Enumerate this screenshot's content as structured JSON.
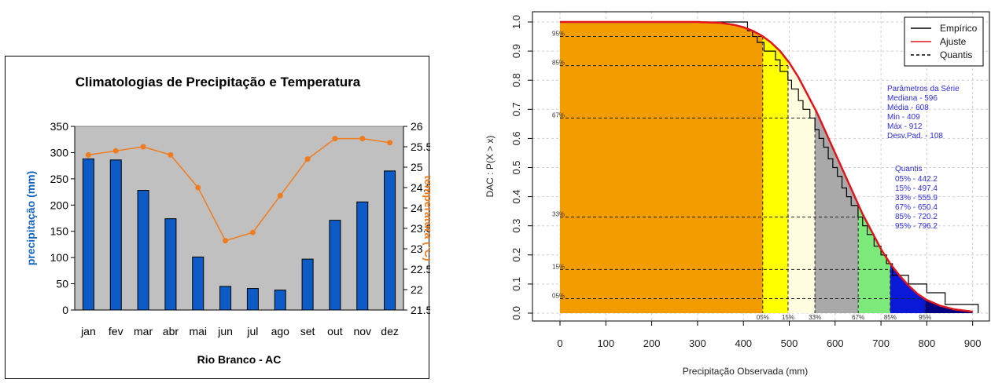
{
  "chart_data": [
    {
      "type": "bar",
      "title": "Climatologias de Precipitação e Temperatura",
      "xlabel": "Rio Branco - AC",
      "ylabel": "precipitação (mm)",
      "y2label": "temperatura (ºC)",
      "categories": [
        "jan",
        "fev",
        "mar",
        "abr",
        "mai",
        "jun",
        "jul",
        "ago",
        "set",
        "out",
        "nov",
        "dez"
      ],
      "ylim": [
        0,
        350
      ],
      "yticks": [
        "0",
        "50",
        "100",
        "150",
        "200",
        "250",
        "300",
        "350"
      ],
      "y2lim": [
        21.5,
        26
      ],
      "y2ticks": [
        "21.5",
        "22",
        "22.5",
        "23",
        "23.5",
        "24",
        "24.5",
        "25",
        "25.5",
        "26"
      ],
      "series": [
        {
          "name": "precipitação",
          "kind": "bar",
          "axis": "left",
          "color": "#0D5BC6",
          "values": [
            288,
            286,
            228,
            174,
            101,
            45,
            41,
            38,
            97,
            171,
            206,
            265
          ]
        },
        {
          "name": "temperatura",
          "kind": "line",
          "axis": "right",
          "color": "#F07C1E",
          "values": [
            25.3,
            25.4,
            25.5,
            25.3,
            24.5,
            23.2,
            23.4,
            24.3,
            25.2,
            25.7,
            25.7,
            25.6
          ]
        }
      ],
      "background": "#C0C0C0"
    },
    {
      "type": "area",
      "xlabel": "Precipitação Observada (mm)",
      "ylabel": "DAC : P(X > x)",
      "xlim": [
        0,
        900
      ],
      "xticks": [
        "0",
        "100",
        "200",
        "300",
        "400",
        "500",
        "600",
        "700",
        "800",
        "900"
      ],
      "ylim": [
        0,
        1
      ],
      "yticks": [
        "0.0",
        "0.1",
        "0.2",
        "0.3",
        "0.4",
        "0.5",
        "0.6",
        "0.7",
        "0.8",
        "0.9",
        "1.0"
      ],
      "grid": true,
      "legend_position": "top-right",
      "legend": [
        "Empírico",
        "Ajuste",
        "Quantis"
      ],
      "series": [
        {
          "name": "Empírico",
          "color": "#000000",
          "x": [
            360,
            409,
            420,
            430,
            445,
            470,
            480,
            497,
            505,
            520,
            530,
            545,
            556,
            565,
            575,
            585,
            595,
            605,
            615,
            625,
            635,
            650,
            660,
            670,
            685,
            700,
            712,
            725,
            760,
            800,
            840,
            912
          ],
          "y": [
            1.0,
            0.97,
            0.95,
            0.93,
            0.9,
            0.87,
            0.83,
            0.8,
            0.77,
            0.73,
            0.7,
            0.67,
            0.63,
            0.6,
            0.57,
            0.53,
            0.5,
            0.47,
            0.43,
            0.4,
            0.37,
            0.33,
            0.3,
            0.27,
            0.23,
            0.2,
            0.17,
            0.13,
            0.1,
            0.07,
            0.03,
            0.0
          ]
        },
        {
          "name": "Ajuste",
          "color": "#E0151B",
          "x": [
            0,
            300,
            350,
            380,
            400,
            420,
            440,
            460,
            480,
            500,
            520,
            540,
            560,
            580,
            600,
            620,
            640,
            660,
            680,
            700,
            720,
            740,
            760,
            780,
            800,
            830,
            860,
            900
          ],
          "y": [
            1.0,
            1.0,
            0.997,
            0.99,
            0.982,
            0.97,
            0.953,
            0.93,
            0.9,
            0.86,
            0.81,
            0.75,
            0.69,
            0.62,
            0.55,
            0.48,
            0.41,
            0.34,
            0.28,
            0.22,
            0.17,
            0.13,
            0.095,
            0.066,
            0.045,
            0.025,
            0.013,
            0.005
          ]
        }
      ],
      "quantile_bands": [
        {
          "from": 0,
          "to": 442.2,
          "color": "#F39C00"
        },
        {
          "from": 442.2,
          "to": 497.4,
          "color": "#FFFF00"
        },
        {
          "from": 497.4,
          "to": 555.9,
          "color": "#FFFDE0"
        },
        {
          "from": 555.9,
          "to": 650.4,
          "color": "#A9A9A9"
        },
        {
          "from": 650.4,
          "to": 720.2,
          "color": "#7BEA7B"
        },
        {
          "from": 720.2,
          "to": 796.2,
          "color": "#0A18D8"
        },
        {
          "from": 796.2,
          "to": 900,
          "color": "#000080"
        }
      ],
      "quantiles": [
        {
          "label": "05%",
          "p": 0.95,
          "x": 442.2
        },
        {
          "label": "15%",
          "p": 0.85,
          "x": 497.4
        },
        {
          "label": "33%",
          "p": 0.67,
          "x": 555.9
        },
        {
          "label": "67%",
          "p": 0.33,
          "x": 650.4
        },
        {
          "label": "85%",
          "p": 0.15,
          "x": 720.2
        },
        {
          "label": "95%",
          "p": 0.05,
          "x": 796.2
        }
      ],
      "y_quantile_labels": [
        {
          "label": "95%",
          "y": 0.95
        },
        {
          "label": "85%",
          "y": 0.85
        },
        {
          "label": "67%",
          "y": 0.67
        },
        {
          "label": "33%",
          "y": 0.33
        },
        {
          "label": "15%",
          "y": 0.15
        },
        {
          "label": "05%",
          "y": 0.05
        }
      ],
      "params": {
        "title": "Parâmetros da Série",
        "lines": [
          "Mediana -  596",
          "Média - 608",
          "Min - 409",
          "Máx - 912",
          "Desv.Pad. -  108"
        ]
      },
      "quantis_box": {
        "title": "Quantis",
        "lines": [
          "05% -  442.2",
          "15% -  497.4",
          "33% -  555.9",
          "67% -  650.4",
          "85% -  720.2",
          "95% -  796.2"
        ]
      }
    }
  ]
}
